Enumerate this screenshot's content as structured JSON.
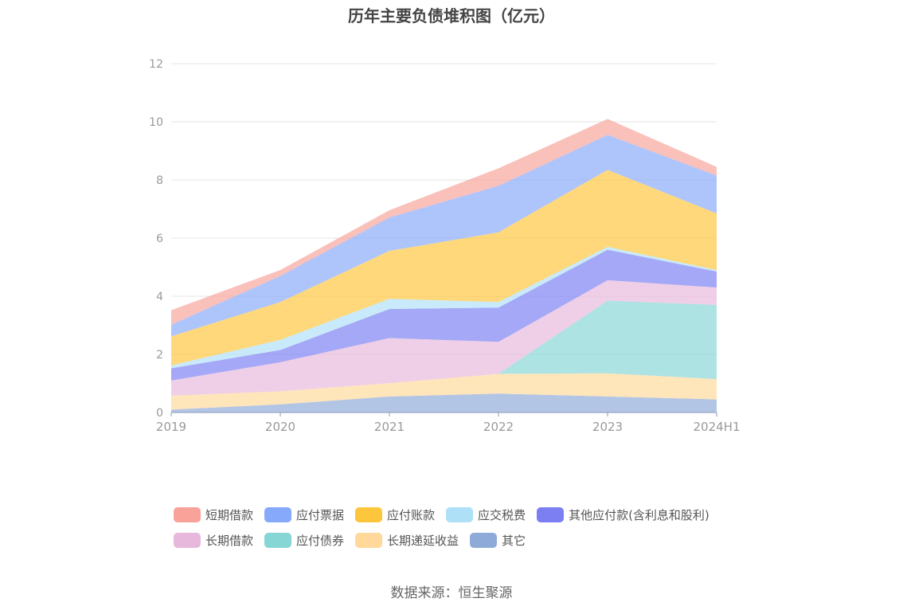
{
  "title": "历年主要负债堆积图（亿元）",
  "source": "数据来源：恒生聚源",
  "chart_data": {
    "type": "area",
    "stacked": true,
    "title": "历年主要负债堆积图（亿元）",
    "x": [
      "2019",
      "2020",
      "2021",
      "2022",
      "2023",
      "2024H1"
    ],
    "ylim": [
      0,
      12
    ],
    "yticks": [
      0,
      2,
      4,
      6,
      8,
      10,
      12
    ],
    "grid": true,
    "legend_position": "bottom",
    "series": [
      {
        "name": "其它",
        "color": "#8eaad9",
        "values": [
          0.1,
          0.28,
          0.55,
          0.65,
          0.55,
          0.45
        ]
      },
      {
        "name": "长期递延收益",
        "color": "#ffd89a",
        "values": [
          0.48,
          0.45,
          0.46,
          0.68,
          0.8,
          0.7
        ]
      },
      {
        "name": "应付债券",
        "color": "#86d6d6",
        "values": [
          0,
          0,
          0,
          0,
          2.5,
          2.55
        ]
      },
      {
        "name": "长期借款",
        "color": "#e8b8dc",
        "values": [
          0.52,
          1.0,
          1.55,
          1.1,
          0.7,
          0.6
        ]
      },
      {
        "name": "其他应付款(含利息和股利)",
        "color": "#7b7ff2",
        "values": [
          0.42,
          0.42,
          1.0,
          1.18,
          1.05,
          0.55
        ]
      },
      {
        "name": "应交税费",
        "color": "#aee0f8",
        "values": [
          0.1,
          0.35,
          0.35,
          0.19,
          0.1,
          0.05
        ]
      },
      {
        "name": "应付账款",
        "color": "#fec63c",
        "values": [
          1.0,
          1.3,
          1.65,
          2.4,
          2.65,
          1.95
        ]
      },
      {
        "name": "应付票据",
        "color": "#87a9fb",
        "values": [
          0.4,
          0.9,
          1.15,
          1.6,
          1.2,
          1.3
        ]
      },
      {
        "name": "短期借款",
        "color": "#f8a29a",
        "values": [
          0.5,
          0.2,
          0.25,
          0.6,
          0.55,
          0.3
        ]
      }
    ]
  },
  "legend": {
    "row1": [
      {
        "label": "短期借款",
        "color": "#f8a29a"
      },
      {
        "label": "应付票据",
        "color": "#87a9fb"
      },
      {
        "label": "应付账款",
        "color": "#fec63c"
      },
      {
        "label": "应交税费",
        "color": "#aee0f8"
      },
      {
        "label": "其他应付款(含利息和股利)",
        "color": "#7b7ff2"
      }
    ],
    "row2": [
      {
        "label": "长期借款",
        "color": "#e8b8dc"
      },
      {
        "label": "应付债券",
        "color": "#86d6d6"
      },
      {
        "label": "长期递延收益",
        "color": "#ffd89a"
      },
      {
        "label": "其它",
        "color": "#8eaad9"
      }
    ]
  }
}
